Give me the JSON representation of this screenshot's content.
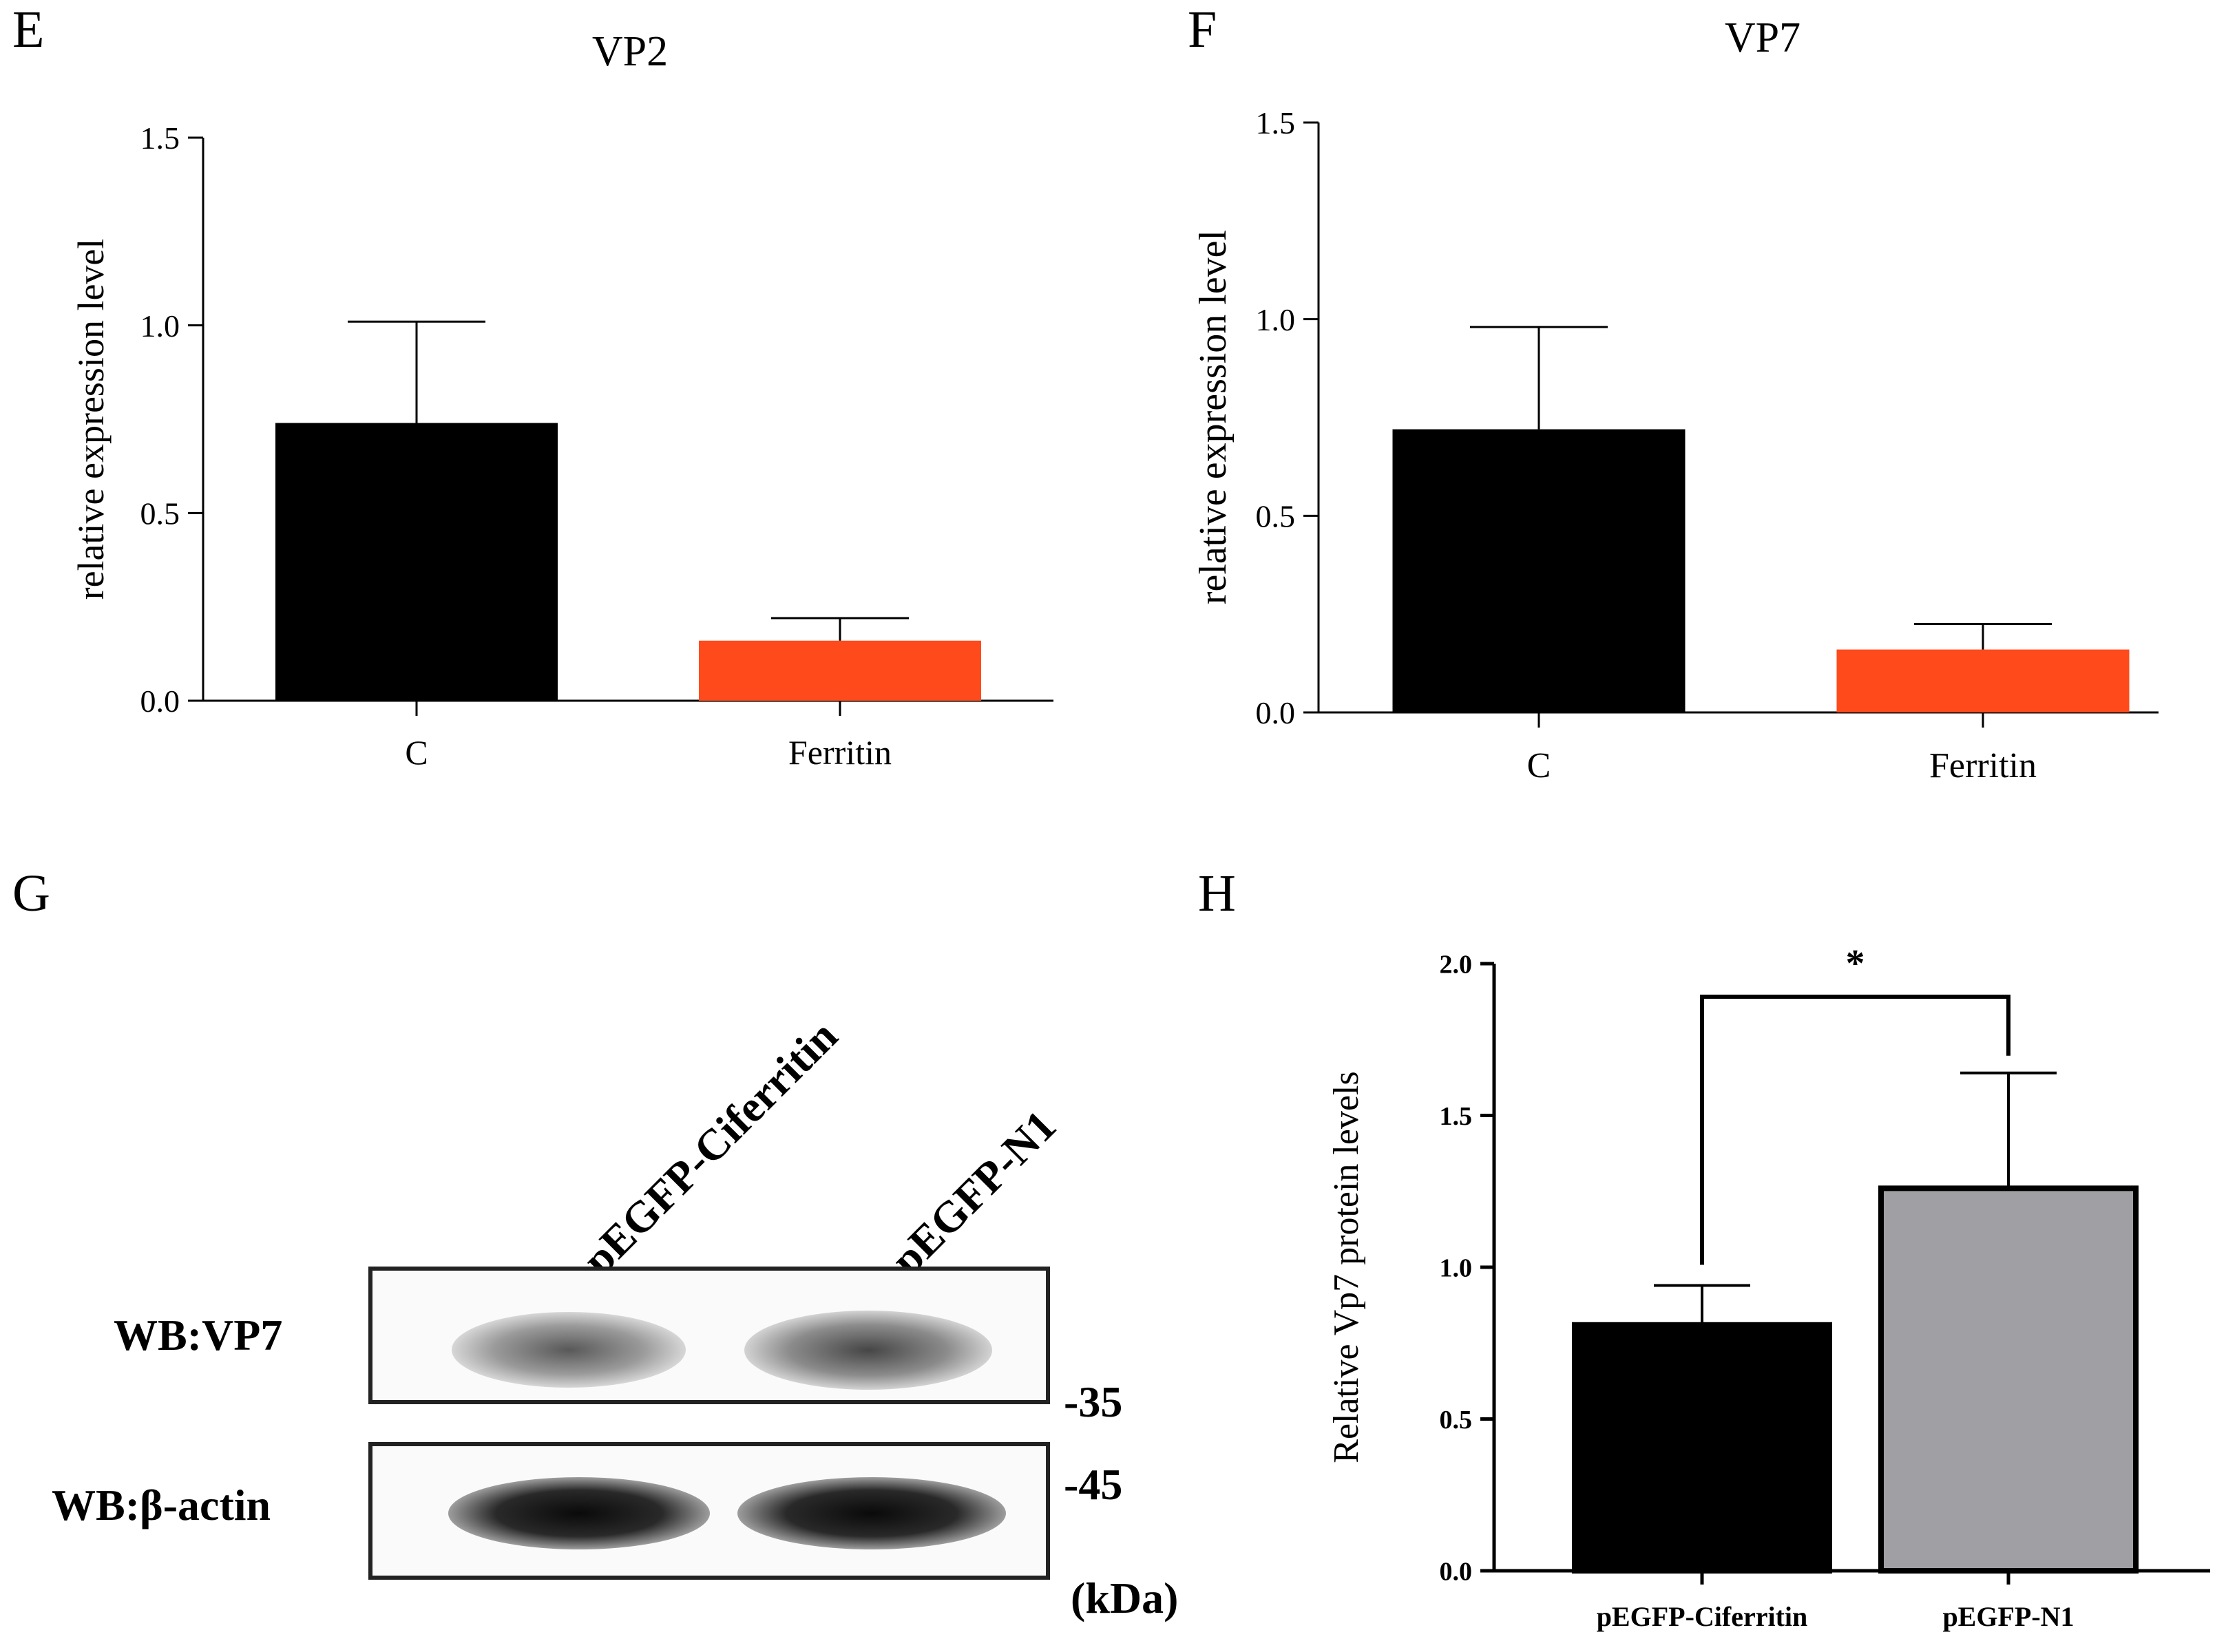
{
  "panels": {
    "e": "E",
    "f": "F",
    "g": "G",
    "h": "H"
  },
  "colors": {
    "black_bar": "#000000",
    "orange_bar": "#ff4a1c",
    "gray_bar": "#a0a0a4"
  },
  "chart_data": [
    {
      "id": "E",
      "type": "bar",
      "title": "VP2",
      "ylabel": "relative expression level",
      "xlabel": "",
      "categories": [
        "C",
        "Ferritin"
      ],
      "values": [
        0.74,
        0.16
      ],
      "errors": [
        0.27,
        0.06
      ],
      "bar_colors": [
        "#000000",
        "#ff4a1c"
      ],
      "ylim": [
        0,
        1.5
      ],
      "yticks": [
        "0.0",
        "0.5",
        "1.0",
        "1.5"
      ],
      "ytick_values": [
        0,
        0.5,
        1.0,
        1.5
      ]
    },
    {
      "id": "F",
      "type": "bar",
      "title": "VP7",
      "ylabel": "relative expression level",
      "xlabel": "",
      "categories": [
        "C",
        "Ferritin"
      ],
      "values": [
        0.72,
        0.16
      ],
      "errors": [
        0.26,
        0.065
      ],
      "bar_colors": [
        "#000000",
        "#ff4a1c"
      ],
      "ylim": [
        0,
        1.5
      ],
      "yticks": [
        "0.0",
        "0.5",
        "1.0",
        "1.5"
      ],
      "ytick_values": [
        0,
        0.5,
        1.0,
        1.5
      ]
    },
    {
      "id": "H",
      "type": "bar",
      "title": "",
      "ylabel": "Relative Vp7 protein levels",
      "xlabel": "",
      "categories": [
        "pEGFP-Ciferritin",
        "pEGFP-N1"
      ],
      "values": [
        0.81,
        1.26
      ],
      "errors": [
        0.13,
        0.38
      ],
      "bar_colors": [
        "#000000",
        "#a0a0a4"
      ],
      "ylim": [
        0,
        2.0
      ],
      "yticks": [
        "0.0",
        "0.5",
        "1.0",
        "1.5",
        "2.0"
      ],
      "ytick_values": [
        0,
        0.5,
        1.0,
        1.5,
        2.0
      ],
      "significance": "*"
    }
  ],
  "blot": {
    "lanes": [
      "pEGFP-Ciferritin",
      "pEGFP-N1"
    ],
    "rows": [
      "WB:VP7",
      "WB:β-actin"
    ],
    "markers": [
      "-35",
      "-45",
      "(kDa)"
    ]
  }
}
